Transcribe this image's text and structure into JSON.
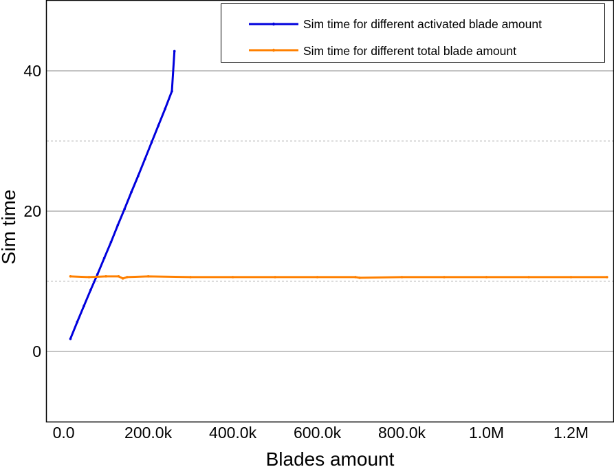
{
  "chart_data": {
    "type": "line",
    "title": "",
    "xlabel": "Blades amount",
    "ylabel": "Sim time",
    "xlim": [
      -40000,
      1300000
    ],
    "ylim": [
      -10,
      50
    ],
    "x_ticks": [
      {
        "value": 0,
        "label": "0.0"
      },
      {
        "value": 200000,
        "label": "200.0k"
      },
      {
        "value": 400000,
        "label": "400.0k"
      },
      {
        "value": 600000,
        "label": "600.0k"
      },
      {
        "value": 800000,
        "label": "800.0k"
      },
      {
        "value": 1000000,
        "label": "1.0M"
      },
      {
        "value": 1200000,
        "label": "1.2M"
      }
    ],
    "y_ticks": [
      {
        "value": 0,
        "label": "0"
      },
      {
        "value": 20,
        "label": "20"
      },
      {
        "value": 40,
        "label": "40"
      }
    ],
    "y_minor_grid": [
      10,
      30
    ],
    "grid": true,
    "legend_position": "top-right",
    "series": [
      {
        "name": "Sim time for different activated blade amount",
        "color": "#0000dd",
        "x": [
          16000,
          32000,
          48000,
          64000,
          80000,
          96000,
          112000,
          128000,
          144000,
          160000,
          176000,
          192000,
          208000,
          224000,
          240000,
          256000,
          262000
        ],
        "y": [
          1.8,
          4.2,
          6.5,
          8.8,
          11.0,
          13.3,
          15.6,
          18.0,
          20.3,
          22.7,
          25.0,
          27.4,
          29.8,
          32.2,
          34.6,
          37.1,
          42.8
        ]
      },
      {
        "name": "Sim time for different total blade amount",
        "color": "#ff8000",
        "x": [
          16000,
          60000,
          100000,
          130000,
          140000,
          150000,
          200000,
          300000,
          400000,
          500000,
          600000,
          690000,
          700000,
          800000,
          900000,
          1000000,
          1100000,
          1200000,
          1285000
        ],
        "y": [
          10.7,
          10.6,
          10.7,
          10.7,
          10.4,
          10.6,
          10.7,
          10.6,
          10.6,
          10.6,
          10.6,
          10.6,
          10.5,
          10.6,
          10.6,
          10.6,
          10.6,
          10.6,
          10.6
        ]
      }
    ]
  }
}
